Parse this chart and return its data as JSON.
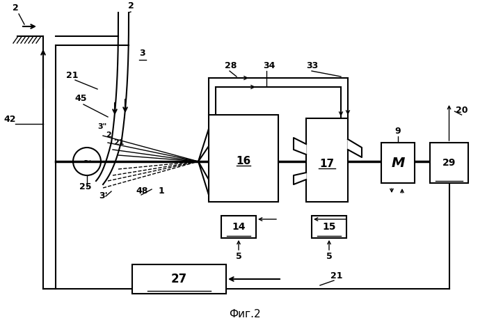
{
  "title": "Фиг.2",
  "bg_color": "#ffffff",
  "line_color": "#000000",
  "labels": {
    "2a": "2",
    "2b": "2",
    "3": "3",
    "3prime": "3'",
    "3doubleprime": "3\"",
    "42": "42",
    "21a": "21",
    "21b": "21",
    "21c": "21",
    "45": "45",
    "25": "25",
    "2c": "2",
    "21d": "21",
    "48": "48",
    "1": "1",
    "28": "28",
    "34": "34",
    "33": "33",
    "16": "16",
    "17": "17",
    "14": "14",
    "15": "15",
    "5a": "5",
    "5b": "5",
    "27": "27",
    "9": "9",
    "20": "20",
    "29": "29"
  }
}
